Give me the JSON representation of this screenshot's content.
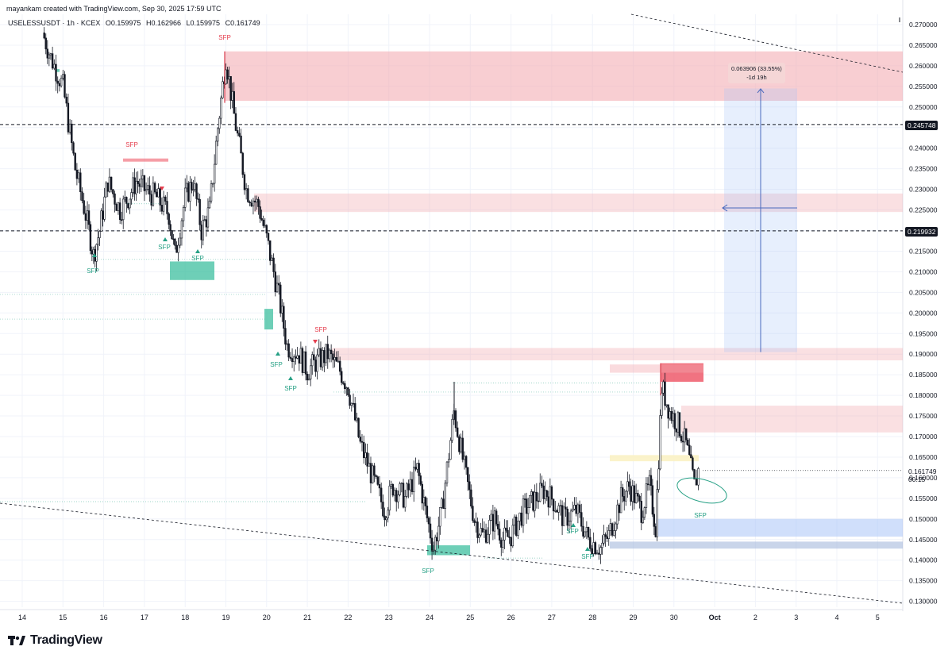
{
  "header": {
    "created_by": "mayankam created with TradingView.com, Sep 30, 2025 17:59 UTC"
  },
  "symbol_line": {
    "symbol": "USELESSUSDT · 1h · KCEX",
    "open": "O0.159975",
    "high": "H0.162966",
    "low": "L0.159975",
    "close": "C0.161749"
  },
  "price_labels": {
    "level_1": "0.245748",
    "level_2": "0.219932",
    "last_price": "0.161749",
    "countdown": "00:15"
  },
  "measure": {
    "line1": "0.063906 (33.55%)",
    "line2": "-1d 19h"
  },
  "logo": {
    "text": "TradingView"
  },
  "annotations": {
    "sfp": "SFP"
  },
  "colors": {
    "up": "#131722",
    "down": "#131722",
    "supply_zone": "#f2a5ad",
    "demand_zone": "#3dbf9f",
    "sfp_red": "#e53e4e",
    "sfp_green": "#26a085",
    "blue_zone": "#a9c4f7",
    "yellow_zone": "#fbf2c4"
  },
  "chart_data": {
    "type": "line",
    "title": "",
    "xlabel": "",
    "ylabel": "",
    "x_ticks": [
      "14",
      "15",
      "16",
      "17",
      "18",
      "19",
      "20",
      "21",
      "22",
      "23",
      "24",
      "25",
      "26",
      "27",
      "28",
      "29",
      "30",
      "Oct",
      "2",
      "3",
      "4",
      "5"
    ],
    "y_ticks": [
      "0.270000",
      "0.265000",
      "0.260000",
      "0.255000",
      "0.250000",
      "0.245000",
      "0.240000",
      "0.235000",
      "0.230000",
      "0.225000",
      "0.220000",
      "0.215000",
      "0.210000",
      "0.205000",
      "0.200000",
      "0.195000",
      "0.190000",
      "0.185000",
      "0.180000",
      "0.175000",
      "0.170000",
      "0.165000",
      "0.160000",
      "0.155000",
      "0.150000",
      "0.145000",
      "0.140000",
      "0.135000",
      "0.130000"
    ],
    "ylim": [
      0.128,
      0.272
    ],
    "grid": true,
    "series": [
      {
        "x": [
          14.5,
          14.7,
          15.0,
          15.3,
          15.6,
          15.75,
          15.9,
          16.1,
          16.4,
          16.6,
          16.8,
          17.0,
          17.3,
          17.6,
          17.75,
          18.0,
          18.2,
          18.4,
          18.6,
          18.8,
          19.0,
          19.2,
          19.5,
          19.8,
          20.0,
          20.3,
          20.5,
          20.8,
          21.0,
          21.2,
          21.5,
          21.8,
          22.0,
          22.3,
          22.6,
          22.9,
          23.1,
          23.4,
          23.7,
          23.9,
          24.1,
          24.3,
          24.6,
          24.9,
          25.1,
          25.3,
          25.6,
          25.8,
          26.0,
          26.3,
          26.5,
          26.8,
          27.0,
          27.3,
          27.6,
          27.9,
          28.2,
          28.4,
          28.7,
          28.9,
          29.2,
          29.4,
          29.55,
          29.7,
          29.9,
          30.1,
          30.3,
          30.5,
          30.6
        ],
        "values": [
          0.268,
          0.262,
          0.255,
          0.235,
          0.222,
          0.214,
          0.22,
          0.232,
          0.225,
          0.228,
          0.232,
          0.23,
          0.228,
          0.224,
          0.214,
          0.228,
          0.232,
          0.22,
          0.225,
          0.245,
          0.262,
          0.248,
          0.23,
          0.226,
          0.218,
          0.204,
          0.192,
          0.19,
          0.186,
          0.188,
          0.19,
          0.186,
          0.182,
          0.168,
          0.16,
          0.152,
          0.158,
          0.155,
          0.162,
          0.152,
          0.143,
          0.152,
          0.176,
          0.16,
          0.15,
          0.146,
          0.15,
          0.145,
          0.146,
          0.152,
          0.154,
          0.157,
          0.155,
          0.15,
          0.152,
          0.145,
          0.143,
          0.146,
          0.155,
          0.158,
          0.152,
          0.158,
          0.148,
          0.182,
          0.176,
          0.173,
          0.168,
          0.158,
          0.161749
        ]
      }
    ],
    "horizontal_lines": [
      0.245748,
      0.219932
    ],
    "zones": {
      "supply": [
        [
          0.2515,
          0.2635
        ],
        [
          0.2245,
          0.229
        ],
        [
          0.1885,
          0.1915
        ],
        [
          0.171,
          0.1775
        ],
        [
          0.1833,
          0.1878
        ]
      ],
      "demand": [
        [
          0.1455,
          0.15
        ],
        [
          0.1425,
          0.1445
        ]
      ]
    },
    "measurement": {
      "from": 0.1905,
      "to": 0.2544,
      "change": "0.063906 (33.55%)",
      "duration": "-1d 19h"
    }
  }
}
